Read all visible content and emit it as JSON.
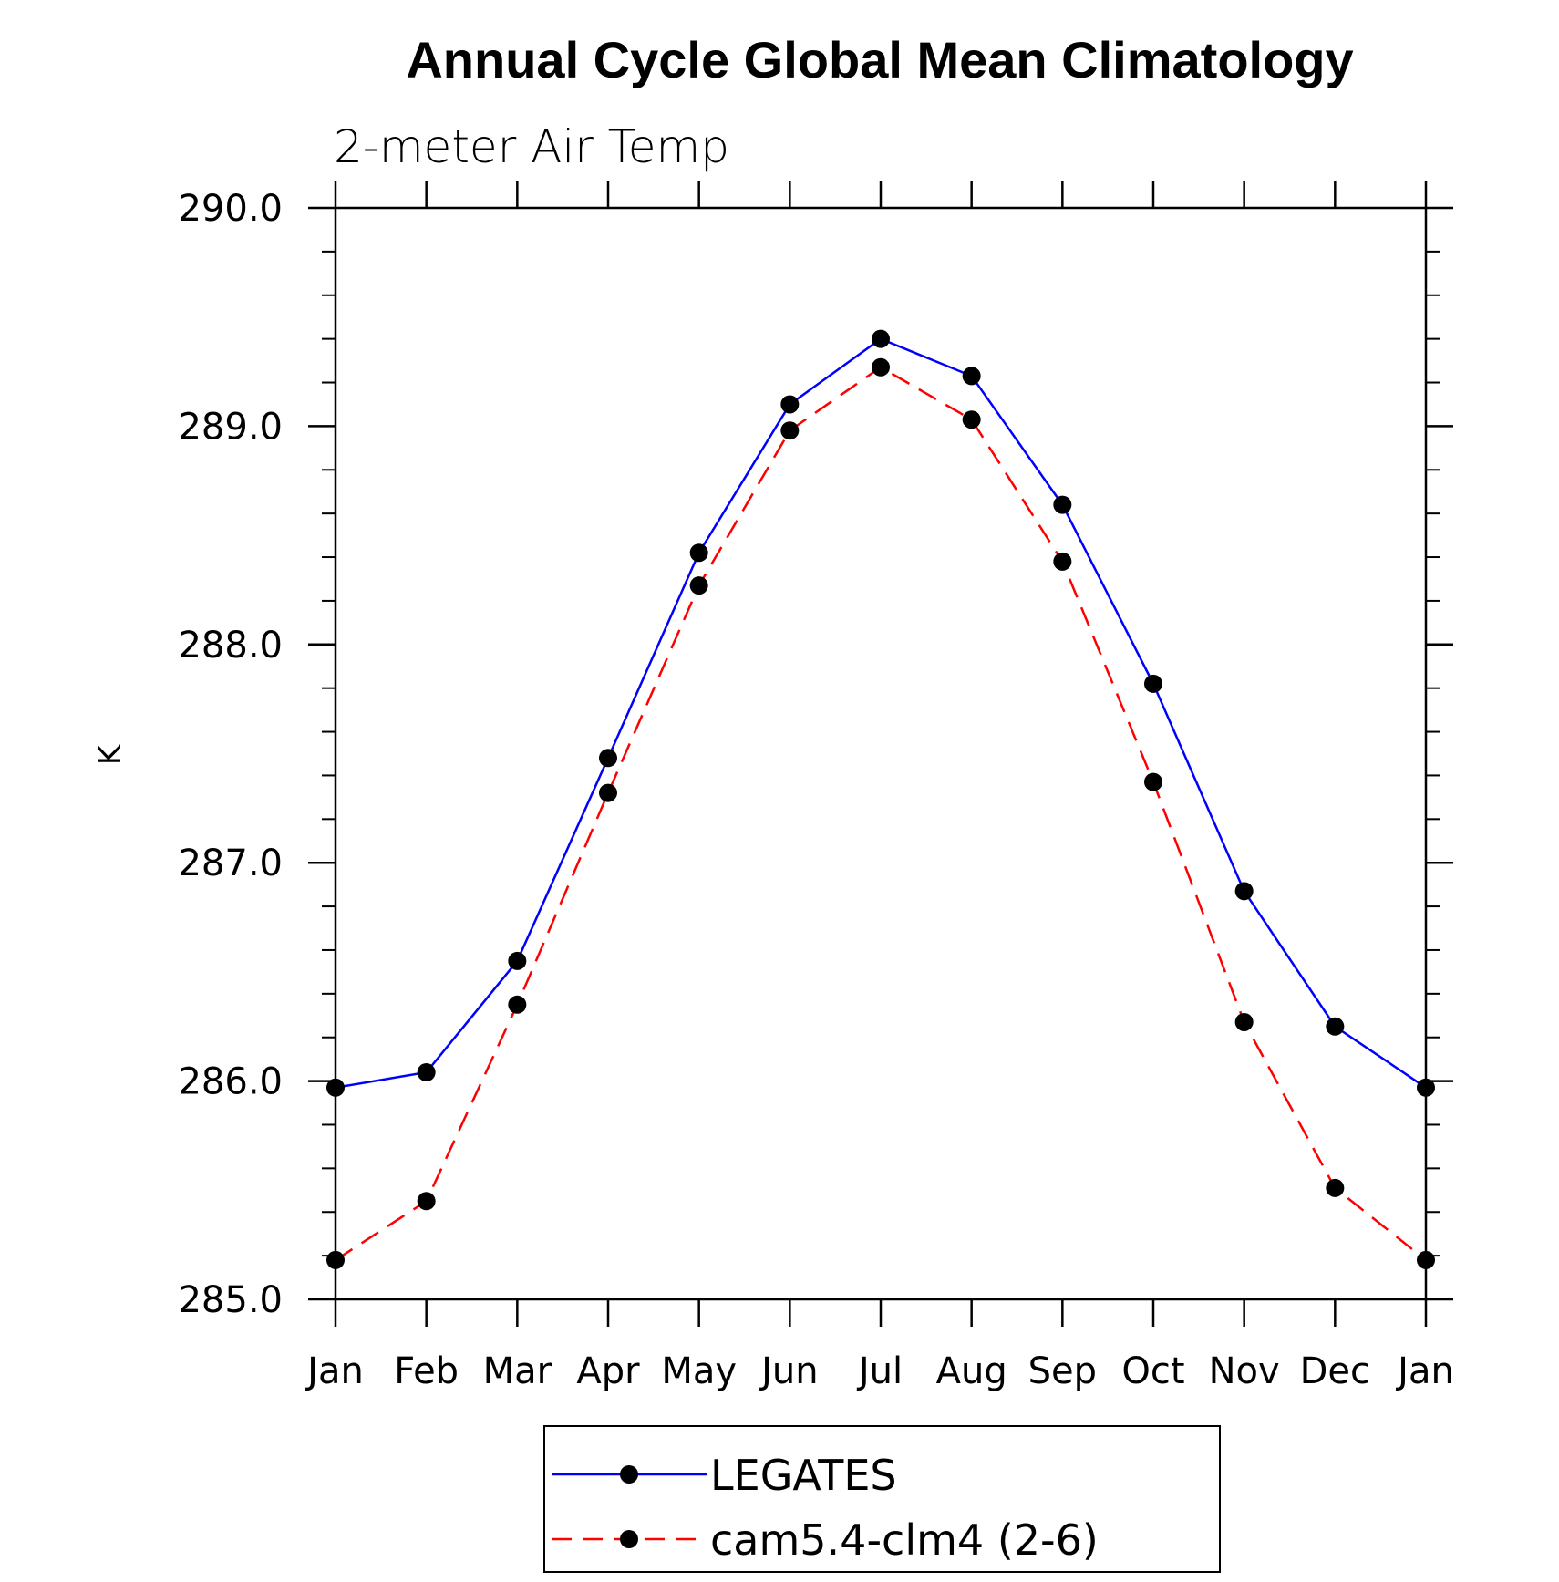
{
  "chart_data": {
    "type": "line",
    "title": "Annual Cycle Global Mean Climatology",
    "subtitle": "2-meter Air Temp",
    "ylabel": "K",
    "xlabel": "",
    "categories": [
      "Jan",
      "Feb",
      "Mar",
      "Apr",
      "May",
      "Jun",
      "Jul",
      "Aug",
      "Sep",
      "Oct",
      "Nov",
      "Dec",
      "Jan"
    ],
    "ylim": [
      285.0,
      290.0
    ],
    "yticks": [
      285.0,
      286.0,
      287.0,
      288.0,
      289.0,
      290.0
    ],
    "ytick_labels": [
      "285.0",
      "286.0",
      "287.0",
      "288.0",
      "289.0",
      "290.0"
    ],
    "grid": false,
    "legend_position": "bottom",
    "series": [
      {
        "name": "LEGATES",
        "color": "#0000ff",
        "line_style": "solid",
        "marker": "filled-circle",
        "values": [
          285.97,
          286.04,
          286.55,
          287.48,
          288.42,
          289.1,
          289.4,
          289.23,
          288.64,
          287.82,
          286.87,
          286.25,
          285.97
        ]
      },
      {
        "name": "cam5.4-clm4 (2-6)",
        "color": "#ff0000",
        "line_style": "dashed",
        "marker": "filled-circle",
        "values": [
          285.18,
          285.45,
          286.35,
          287.32,
          288.27,
          288.98,
          289.27,
          289.03,
          288.38,
          287.37,
          286.27,
          285.51,
          285.18
        ]
      }
    ]
  }
}
